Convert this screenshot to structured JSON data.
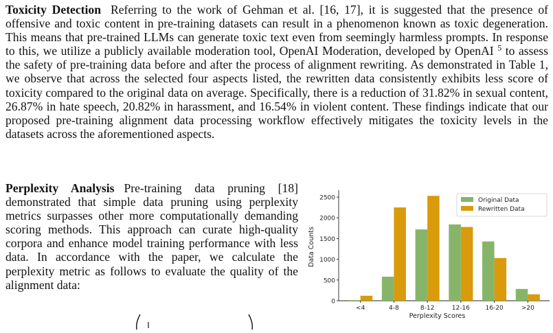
{
  "section1": {
    "heading": "Toxicity Detection",
    "text_before_sup": "Referring to the work of Gehman et al. [16, 17], it is suggested that the presence of offensive and toxic content in pre-training datasets can result in a phenomenon known as toxic degeneration. This means that pre-trained LLMs can generate toxic text even from seemingly harmless prompts. In response to this, we utilize a publicly available moderation tool, OpenAI Moderation, developed by OpenAI",
    "footnote": "5",
    "text_after_sup": "to assess the safety of pre-training data before and after the process of alignment rewriting. As demonstrated in Table 1, we observe that across the selected four aspects listed, the rewritten data consistently exhibits less score of toxicity compared to the original data on average. Specifically, there is a reduction of 31.82% in sexual content, 26.87% in hate speech, 20.82% in harassment, and 16.54% in violent content. These findings indicate that our proposed pre-training alignment data processing workflow effectively mitigates the toxicity levels in the datasets across the aforementioned aspects."
  },
  "section2": {
    "heading": "Perplexity Analysis",
    "text": "Pre-training data pruning [18] demonstrated that simple data pruning using perplexity metrics surpasses other more computationally demanding scoring methods. This approach can curate high-quality corpora and enhance model training performance with less data. In accordance with the paper, we calculate the perplexity metric as follows to evaluate the quality of the alignment data:"
  },
  "colors": {
    "original": "#86b56a",
    "rewritten": "#d99b0b"
  },
  "chart_data": {
    "type": "bar",
    "categories": [
      "<4",
      "4-8",
      "8-12",
      "12-16",
      "16-20",
      ">20"
    ],
    "series": [
      {
        "name": "Original Data",
        "values": [
          15,
          580,
          1720,
          1840,
          1430,
          285
        ]
      },
      {
        "name": "Rewritten Data",
        "values": [
          120,
          2250,
          2530,
          1780,
          1030,
          155
        ]
      }
    ],
    "xlabel": "Perplexity Scores",
    "ylabel": "Data Counts",
    "ylim": [
      0,
      2600
    ],
    "yticks": [
      0,
      500,
      1000,
      1500,
      2000,
      2500
    ],
    "legend": "top-right",
    "grid": false
  }
}
